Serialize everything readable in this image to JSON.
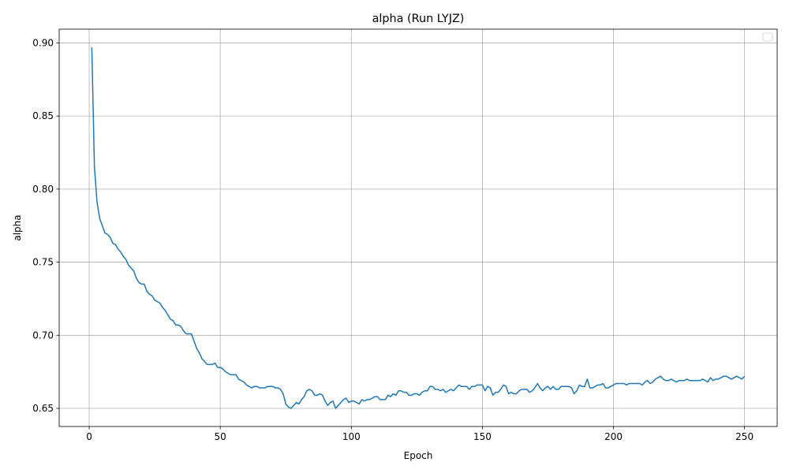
{
  "chart_data": {
    "type": "line",
    "title": "alpha (Run LYJZ)",
    "xlabel": "Epoch",
    "ylabel": "alpha",
    "x": [
      1,
      2,
      3,
      4,
      5,
      6,
      7,
      8,
      9,
      10,
      11,
      12,
      13,
      14,
      15,
      16,
      17,
      18,
      19,
      20,
      21,
      22,
      23,
      24,
      25,
      26,
      27,
      28,
      29,
      30,
      31,
      32,
      33,
      34,
      35,
      36,
      37,
      38,
      39,
      40,
      41,
      42,
      43,
      44,
      45,
      46,
      47,
      48,
      49,
      50,
      51,
      52,
      53,
      54,
      55,
      56,
      57,
      58,
      59,
      60,
      61,
      62,
      63,
      64,
      65,
      66,
      67,
      68,
      69,
      70,
      71,
      72,
      73,
      74,
      75,
      76,
      77,
      78,
      79,
      80,
      81,
      82,
      83,
      84,
      85,
      86,
      87,
      88,
      89,
      90,
      91,
      92,
      93,
      94,
      95,
      96,
      97,
      98,
      99,
      100,
      101,
      102,
      103,
      104,
      105,
      106,
      107,
      108,
      109,
      110,
      111,
      112,
      113,
      114,
      115,
      116,
      117,
      118,
      119,
      120,
      121,
      122,
      123,
      124,
      125,
      126,
      127,
      128,
      129,
      130,
      131,
      132,
      133,
      134,
      135,
      136,
      137,
      138,
      139,
      140,
      141,
      142,
      143,
      144,
      145,
      146,
      147,
      148,
      149,
      150,
      151,
      152,
      153,
      154,
      155,
      156,
      157,
      158,
      159,
      160,
      161,
      162,
      163,
      164,
      165,
      166,
      167,
      168,
      169,
      170,
      171,
      172,
      173,
      174,
      175,
      176,
      177,
      178,
      179,
      180,
      181,
      182,
      183,
      184,
      185,
      186,
      187,
      188,
      189,
      190,
      191,
      192,
      193,
      194,
      195,
      196,
      197,
      198,
      199,
      200,
      201,
      202,
      203,
      204,
      205,
      206,
      207,
      208,
      209,
      210,
      211,
      212,
      213,
      214,
      215,
      216,
      217,
      218,
      219,
      220,
      221,
      222,
      223,
      224,
      225,
      226,
      227,
      228,
      229,
      230,
      231,
      232,
      233,
      234,
      235,
      236,
      237,
      238,
      239,
      240,
      241,
      242,
      243,
      244,
      245,
      246,
      247,
      248,
      249,
      250
    ],
    "series": [
      {
        "color": "#1f77b4",
        "values": [
          0.897,
          0.815,
          0.791,
          0.78,
          0.775,
          0.77,
          0.769,
          0.767,
          0.763,
          0.762,
          0.759,
          0.757,
          0.754,
          0.752,
          0.748,
          0.746,
          0.744,
          0.739,
          0.736,
          0.735,
          0.735,
          0.73,
          0.728,
          0.727,
          0.724,
          0.723,
          0.722,
          0.719,
          0.717,
          0.714,
          0.711,
          0.71,
          0.707,
          0.707,
          0.706,
          0.703,
          0.701,
          0.701,
          0.701,
          0.696,
          0.691,
          0.688,
          0.684,
          0.682,
          0.68,
          0.68,
          0.68,
          0.681,
          0.678,
          0.678,
          0.677,
          0.675,
          0.674,
          0.673,
          0.673,
          0.673,
          0.67,
          0.669,
          0.668,
          0.666,
          0.665,
          0.664,
          0.665,
          0.665,
          0.664,
          0.664,
          0.664,
          0.665,
          0.665,
          0.665,
          0.664,
          0.664,
          0.663,
          0.66,
          0.653,
          0.651,
          0.65,
          0.652,
          0.654,
          0.653,
          0.656,
          0.658,
          0.662,
          0.663,
          0.662,
          0.659,
          0.659,
          0.66,
          0.659,
          0.655,
          0.652,
          0.654,
          0.655,
          0.65,
          0.652,
          0.654,
          0.656,
          0.657,
          0.654,
          0.655,
          0.655,
          0.654,
          0.653,
          0.656,
          0.655,
          0.656,
          0.656,
          0.657,
          0.658,
          0.658,
          0.656,
          0.656,
          0.656,
          0.659,
          0.658,
          0.66,
          0.659,
          0.662,
          0.662,
          0.661,
          0.661,
          0.659,
          0.659,
          0.66,
          0.66,
          0.659,
          0.661,
          0.662,
          0.662,
          0.665,
          0.665,
          0.663,
          0.663,
          0.662,
          0.663,
          0.661,
          0.662,
          0.663,
          0.662,
          0.664,
          0.666,
          0.665,
          0.665,
          0.665,
          0.663,
          0.665,
          0.665,
          0.666,
          0.666,
          0.666,
          0.662,
          0.665,
          0.664,
          0.659,
          0.661,
          0.661,
          0.663,
          0.666,
          0.665,
          0.66,
          0.661,
          0.66,
          0.66,
          0.662,
          0.663,
          0.663,
          0.663,
          0.661,
          0.662,
          0.664,
          0.667,
          0.664,
          0.662,
          0.664,
          0.665,
          0.663,
          0.665,
          0.663,
          0.663,
          0.665,
          0.665,
          0.665,
          0.665,
          0.664,
          0.66,
          0.662,
          0.666,
          0.665,
          0.665,
          0.67,
          0.664,
          0.664,
          0.665,
          0.666,
          0.666,
          0.667,
          0.664,
          0.664,
          0.665,
          0.666,
          0.667,
          0.667,
          0.667,
          0.667,
          0.666,
          0.667,
          0.667,
          0.667,
          0.667,
          0.667,
          0.666,
          0.668,
          0.669,
          0.667,
          0.668,
          0.67,
          0.671,
          0.672,
          0.67,
          0.669,
          0.669,
          0.67,
          0.669,
          0.668,
          0.669,
          0.669,
          0.669,
          0.67,
          0.669,
          0.669,
          0.669,
          0.669,
          0.669,
          0.67,
          0.669,
          0.668,
          0.671,
          0.669,
          0.67,
          0.67,
          0.671,
          0.672,
          0.672,
          0.671,
          0.67,
          0.671,
          0.672,
          0.671,
          0.67,
          0.672
        ]
      }
    ],
    "xlim": [
      -11.45,
      262.45
    ],
    "ylim": [
      0.6376,
      0.9094
    ],
    "xticks": [
      0,
      50,
      100,
      150,
      200,
      250
    ],
    "yticks": [
      0.65,
      {
        "value": 0.7,
        "label": "0.70"
      },
      0.75,
      {
        "value": 0.8,
        "label": "0.80"
      },
      0.85,
      {
        "value": 0.9,
        "label": "0.90"
      }
    ],
    "grid": true
  }
}
